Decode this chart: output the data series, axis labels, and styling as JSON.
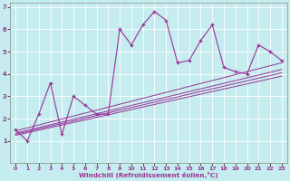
{
  "xlabel": "Windchill (Refroidissement éolien,°C)",
  "bg_color": "#c5ecee",
  "line_color": "#993399",
  "xlim": [
    -0.5,
    23.5
  ],
  "ylim": [
    0,
    7.2
  ],
  "xticks": [
    0,
    1,
    2,
    3,
    4,
    5,
    6,
    7,
    8,
    9,
    10,
    11,
    12,
    13,
    14,
    15,
    16,
    17,
    18,
    19,
    20,
    21,
    22,
    23
  ],
  "yticks": [
    1,
    2,
    3,
    4,
    5,
    6,
    7
  ],
  "main_x": [
    0,
    1,
    2,
    3,
    4,
    5,
    6,
    7,
    8,
    9,
    10,
    11,
    12,
    13,
    14,
    15,
    16,
    17,
    18,
    19,
    20,
    21,
    22,
    23
  ],
  "main_y": [
    1.5,
    1.0,
    2.2,
    3.6,
    1.3,
    3.0,
    2.6,
    2.2,
    2.2,
    6.0,
    5.3,
    6.2,
    6.8,
    6.4,
    4.5,
    4.6,
    5.5,
    6.2,
    4.3,
    4.1,
    4.0,
    5.3,
    5.0,
    4.6
  ],
  "linear_lines": [
    {
      "x": [
        0,
        23
      ],
      "y": [
        1.25,
        3.9
      ]
    },
    {
      "x": [
        0,
        23
      ],
      "y": [
        1.3,
        4.05
      ]
    },
    {
      "x": [
        0,
        23
      ],
      "y": [
        1.35,
        4.2
      ]
    },
    {
      "x": [
        0,
        23
      ],
      "y": [
        1.45,
        4.5
      ]
    }
  ],
  "grid_color": "#ffffff",
  "tick_fontsize": 4.5,
  "xlabel_fontsize": 5.2
}
